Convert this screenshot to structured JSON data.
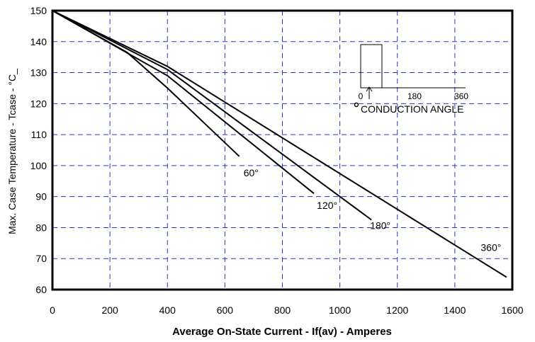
{
  "chart_data": {
    "type": "line",
    "xlabel": "Average On-State Current - If(av) - Amperes",
    "ylabel": "Max. Case Temperature - Tcase - °C_",
    "xlim": [
      0,
      1600
    ],
    "ylim": [
      60,
      150
    ],
    "x_ticks": [
      0,
      200,
      400,
      600,
      800,
      1000,
      1200,
      1400,
      1600
    ],
    "y_ticks": [
      60,
      70,
      80,
      90,
      100,
      110,
      120,
      130,
      140,
      150
    ],
    "grid": true,
    "series": [
      {
        "name": "60°",
        "points": [
          [
            0,
            150
          ],
          [
            260,
            136.5
          ],
          [
            400,
            125
          ],
          [
            650,
            103
          ]
        ]
      },
      {
        "name": "120°",
        "points": [
          [
            0,
            150
          ],
          [
            400,
            129
          ],
          [
            910,
            91
          ]
        ]
      },
      {
        "name": "180°",
        "points": [
          [
            0,
            150
          ],
          [
            400,
            131
          ],
          [
            1110,
            82.5
          ]
        ]
      },
      {
        "name": "360°",
        "points": [
          [
            0,
            150
          ],
          [
            400,
            132
          ],
          [
            1580,
            64
          ]
        ]
      }
    ],
    "series_labels": [
      {
        "text": "60°",
        "x": 665,
        "y": 96.5
      },
      {
        "text": "120°",
        "x": 920,
        "y": 86
      },
      {
        "text": "180°",
        "x": 1105,
        "y": 79.5
      },
      {
        "text": "360°",
        "x": 1490,
        "y": 72.5
      }
    ],
    "inset": {
      "title": "CONDUCTION ANGLE",
      "tick_labels": [
        "0",
        "180",
        "360"
      ]
    }
  }
}
